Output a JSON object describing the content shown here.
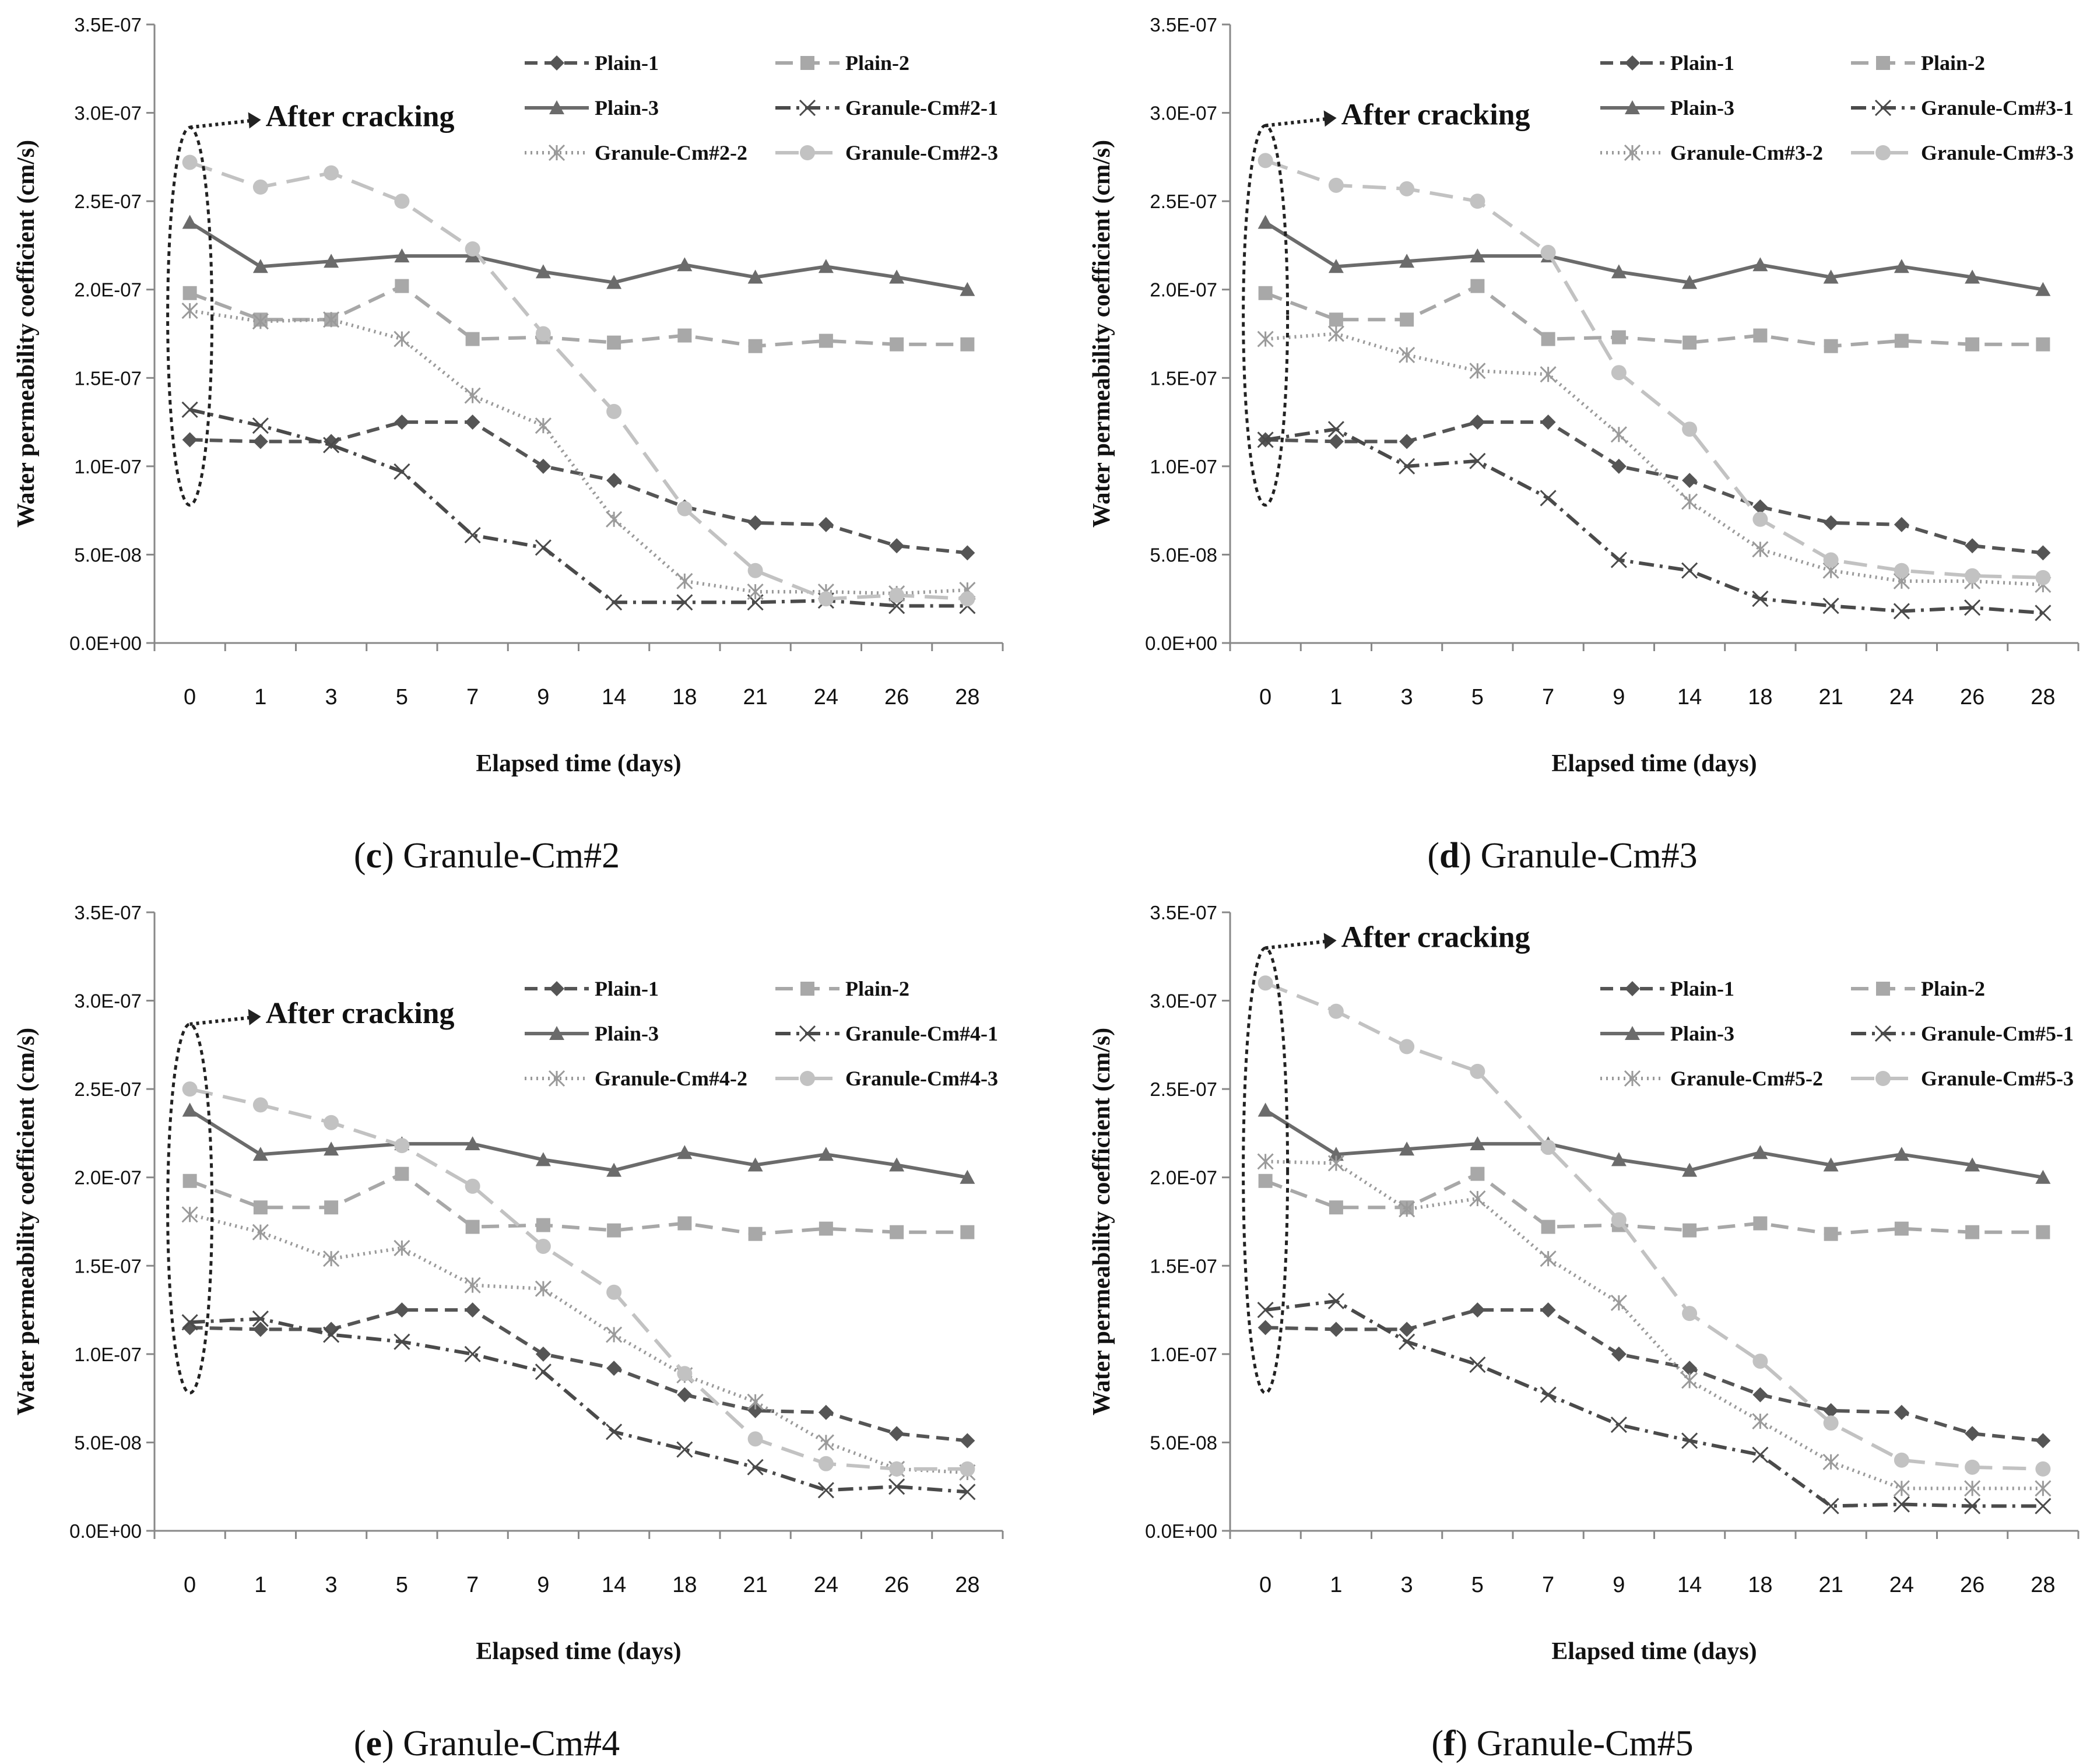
{
  "chart_data": [
    {
      "type": "line",
      "panel_label": "c",
      "caption_text": "Granule-Cm#2",
      "categories": [
        "0",
        "1",
        "3",
        "5",
        "7",
        "9",
        "14",
        "18",
        "21",
        "24",
        "26",
        "28"
      ],
      "xlabel": "Elapsed time (days)",
      "ylabel": "Water permeability coefficient (cm/s)",
      "ylim": [
        0,
        3.5e-07
      ],
      "yticks": [
        "0.0E+00",
        "5.0E-08",
        "1.0E-07",
        "1.5E-07",
        "2.0E-07",
        "2.5E-07",
        "3.0E-07",
        "3.5E-07"
      ],
      "annotation": "After cracking",
      "series": [
        {
          "name": "Plain-1",
          "style": "plain1",
          "values": [
            1.15e-07,
            1.14e-07,
            1.14e-07,
            1.25e-07,
            1.25e-07,
            1e-07,
            9.2e-08,
            7.7e-08,
            6.8e-08,
            6.7e-08,
            5.5e-08,
            5.1e-08
          ]
        },
        {
          "name": "Plain-2",
          "style": "plain2",
          "values": [
            1.98e-07,
            1.83e-07,
            1.83e-07,
            2.02e-07,
            1.72e-07,
            1.73e-07,
            1.7e-07,
            1.74e-07,
            1.68e-07,
            1.71e-07,
            1.69e-07,
            1.69e-07
          ]
        },
        {
          "name": "Plain-3",
          "style": "plain3",
          "values": [
            2.38e-07,
            2.13e-07,
            2.16e-07,
            2.19e-07,
            2.19e-07,
            2.1e-07,
            2.04e-07,
            2.14e-07,
            2.07e-07,
            2.13e-07,
            2.07e-07,
            2e-07
          ]
        },
        {
          "name": "Granule-Cm#2-1",
          "style": "g1",
          "values": [
            1.32e-07,
            1.23e-07,
            1.12e-07,
            9.7e-08,
            6.1e-08,
            5.4e-08,
            2.3e-08,
            2.3e-08,
            2.3e-08,
            2.4e-08,
            2.1e-08,
            2.1e-08
          ]
        },
        {
          "name": "Granule-Cm#2-2",
          "style": "g2",
          "values": [
            1.88e-07,
            1.82e-07,
            1.83e-07,
            1.72e-07,
            1.4e-07,
            1.23e-07,
            7e-08,
            3.5e-08,
            2.9e-08,
            2.9e-08,
            2.8e-08,
            3e-08
          ]
        },
        {
          "name": "Granule-Cm#2-3",
          "style": "g3",
          "values": [
            2.72e-07,
            2.58e-07,
            2.66e-07,
            2.5e-07,
            2.23e-07,
            1.75e-07,
            1.31e-07,
            7.6e-08,
            4.1e-08,
            2.5e-08,
            2.7e-08,
            2.5e-08
          ]
        }
      ]
    },
    {
      "type": "line",
      "panel_label": "d",
      "caption_text": "Granule-Cm#3",
      "categories": [
        "0",
        "1",
        "3",
        "5",
        "7",
        "9",
        "14",
        "18",
        "21",
        "24",
        "26",
        "28"
      ],
      "xlabel": "Elapsed time (days)",
      "ylabel": "Water permeability coefficient (cm/s)",
      "ylim": [
        0,
        3.5e-07
      ],
      "yticks": [
        "0.0E+00",
        "5.0E-08",
        "1.0E-07",
        "1.5E-07",
        "2.0E-07",
        "2.5E-07",
        "3.0E-07",
        "3.5E-07"
      ],
      "annotation": "After cracking",
      "series": [
        {
          "name": "Plain-1",
          "style": "plain1",
          "values": [
            1.15e-07,
            1.14e-07,
            1.14e-07,
            1.25e-07,
            1.25e-07,
            1e-07,
            9.2e-08,
            7.7e-08,
            6.8e-08,
            6.7e-08,
            5.5e-08,
            5.1e-08
          ]
        },
        {
          "name": "Plain-2",
          "style": "plain2",
          "values": [
            1.98e-07,
            1.83e-07,
            1.83e-07,
            2.02e-07,
            1.72e-07,
            1.73e-07,
            1.7e-07,
            1.74e-07,
            1.68e-07,
            1.71e-07,
            1.69e-07,
            1.69e-07
          ]
        },
        {
          "name": "Plain-3",
          "style": "plain3",
          "values": [
            2.38e-07,
            2.13e-07,
            2.16e-07,
            2.19e-07,
            2.19e-07,
            2.1e-07,
            2.04e-07,
            2.14e-07,
            2.07e-07,
            2.13e-07,
            2.07e-07,
            2e-07
          ]
        },
        {
          "name": "Granule-Cm#3-1",
          "style": "g1",
          "values": [
            1.15e-07,
            1.21e-07,
            1e-07,
            1.03e-07,
            8.2e-08,
            4.7e-08,
            4.1e-08,
            2.5e-08,
            2.1e-08,
            1.8e-08,
            2e-08,
            1.7e-08
          ]
        },
        {
          "name": "Granule-Cm#3-2",
          "style": "g2",
          "values": [
            1.72e-07,
            1.75e-07,
            1.63e-07,
            1.54e-07,
            1.52e-07,
            1.18e-07,
            8e-08,
            5.3e-08,
            4.1e-08,
            3.5e-08,
            3.5e-08,
            3.3e-08
          ]
        },
        {
          "name": "Granule-Cm#3-3",
          "style": "g3",
          "values": [
            2.73e-07,
            2.59e-07,
            2.57e-07,
            2.5e-07,
            2.21e-07,
            1.53e-07,
            1.21e-07,
            7e-08,
            4.7e-08,
            4.1e-08,
            3.8e-08,
            3.7e-08
          ]
        }
      ]
    },
    {
      "type": "line",
      "panel_label": "e",
      "caption_text": "Granule-Cm#4",
      "categories": [
        "0",
        "1",
        "3",
        "5",
        "7",
        "9",
        "14",
        "18",
        "21",
        "24",
        "26",
        "28"
      ],
      "xlabel": "Elapsed time (days)",
      "ylabel": "Water permeability coefficient (cm/s)",
      "ylim": [
        0,
        3.5e-07
      ],
      "yticks": [
        "0.0E+00",
        "5.0E-08",
        "1.0E-07",
        "1.5E-07",
        "2.0E-07",
        "2.5E-07",
        "3.0E-07",
        "3.5E-07"
      ],
      "annotation": "After cracking",
      "series": [
        {
          "name": "Plain-1",
          "style": "plain1",
          "values": [
            1.15e-07,
            1.14e-07,
            1.14e-07,
            1.25e-07,
            1.25e-07,
            1e-07,
            9.2e-08,
            7.7e-08,
            6.8e-08,
            6.7e-08,
            5.5e-08,
            5.1e-08
          ]
        },
        {
          "name": "Plain-2",
          "style": "plain2",
          "values": [
            1.98e-07,
            1.83e-07,
            1.83e-07,
            2.02e-07,
            1.72e-07,
            1.73e-07,
            1.7e-07,
            1.74e-07,
            1.68e-07,
            1.71e-07,
            1.69e-07,
            1.69e-07
          ]
        },
        {
          "name": "Plain-3",
          "style": "plain3",
          "values": [
            2.38e-07,
            2.13e-07,
            2.16e-07,
            2.19e-07,
            2.19e-07,
            2.1e-07,
            2.04e-07,
            2.14e-07,
            2.07e-07,
            2.13e-07,
            2.07e-07,
            2e-07
          ]
        },
        {
          "name": "Granule-Cm#4-1",
          "style": "g1",
          "values": [
            1.18e-07,
            1.2e-07,
            1.11e-07,
            1.07e-07,
            1e-07,
            9e-08,
            5.6e-08,
            4.6e-08,
            3.6e-08,
            2.3e-08,
            2.5e-08,
            2.2e-08
          ]
        },
        {
          "name": "Granule-Cm#4-2",
          "style": "g2",
          "values": [
            1.79e-07,
            1.69e-07,
            1.54e-07,
            1.6e-07,
            1.39e-07,
            1.37e-07,
            1.11e-07,
            8.8e-08,
            7.3e-08,
            5e-08,
            3.5e-08,
            3.3e-08
          ]
        },
        {
          "name": "Granule-Cm#4-3",
          "style": "g3",
          "values": [
            2.5e-07,
            2.41e-07,
            2.31e-07,
            2.18e-07,
            1.95e-07,
            1.61e-07,
            1.35e-07,
            8.9e-08,
            5.2e-08,
            3.8e-08,
            3.5e-08,
            3.5e-08
          ]
        }
      ]
    },
    {
      "type": "line",
      "panel_label": "f",
      "caption_text": "Granule-Cm#5",
      "categories": [
        "0",
        "1",
        "3",
        "5",
        "7",
        "9",
        "14",
        "18",
        "21",
        "24",
        "26",
        "28"
      ],
      "xlabel": "Elapsed time (days)",
      "ylabel": "Water permeability coefficient (cm/s)",
      "ylim": [
        0,
        3.5e-07
      ],
      "yticks": [
        "0.0E+00",
        "5.0E-08",
        "1.0E-07",
        "1.5E-07",
        "2.0E-07",
        "2.5E-07",
        "3.0E-07",
        "3.5E-07"
      ],
      "annotation": "After cracking",
      "series": [
        {
          "name": "Plain-1",
          "style": "plain1",
          "values": [
            1.15e-07,
            1.14e-07,
            1.14e-07,
            1.25e-07,
            1.25e-07,
            1e-07,
            9.2e-08,
            7.7e-08,
            6.8e-08,
            6.7e-08,
            5.5e-08,
            5.1e-08
          ]
        },
        {
          "name": "Plain-2",
          "style": "plain2",
          "values": [
            1.98e-07,
            1.83e-07,
            1.83e-07,
            2.02e-07,
            1.72e-07,
            1.73e-07,
            1.7e-07,
            1.74e-07,
            1.68e-07,
            1.71e-07,
            1.69e-07,
            1.69e-07
          ]
        },
        {
          "name": "Plain-3",
          "style": "plain3",
          "values": [
            2.38e-07,
            2.13e-07,
            2.16e-07,
            2.19e-07,
            2.19e-07,
            2.1e-07,
            2.04e-07,
            2.14e-07,
            2.07e-07,
            2.13e-07,
            2.07e-07,
            2e-07
          ]
        },
        {
          "name": "Granule-Cm#5-1",
          "style": "g1",
          "values": [
            1.25e-07,
            1.3e-07,
            1.07e-07,
            9.4e-08,
            7.7e-08,
            6e-08,
            5.1e-08,
            4.3e-08,
            1.4e-08,
            1.5e-08,
            1.4e-08,
            1.4e-08
          ]
        },
        {
          "name": "Granule-Cm#5-2",
          "style": "g2",
          "values": [
            2.09e-07,
            2.08e-07,
            1.82e-07,
            1.88e-07,
            1.54e-07,
            1.29e-07,
            8.5e-08,
            6.2e-08,
            3.9e-08,
            2.4e-08,
            2.4e-08,
            2.4e-08
          ]
        },
        {
          "name": "Granule-Cm#5-3",
          "style": "g3",
          "values": [
            3.1e-07,
            2.94e-07,
            2.74e-07,
            2.6e-07,
            2.17e-07,
            1.76e-07,
            1.23e-07,
            9.6e-08,
            6.1e-08,
            4e-08,
            3.6e-08,
            3.5e-08
          ]
        }
      ]
    }
  ],
  "styles": {
    "plain1": {
      "color": "#555555",
      "dash": "22,12",
      "marker": "diamond"
    },
    "plain2": {
      "color": "#a8a8a8",
      "dash": "30,16",
      "marker": "square"
    },
    "plain3": {
      "color": "#6b6b6b",
      "dash": "",
      "marker": "triangle"
    },
    "g1": {
      "color": "#4a4a4a",
      "dash": "26,10,5,10",
      "marker": "x"
    },
    "g2": {
      "color": "#9a9a9a",
      "dash": "3,7",
      "marker": "asterisk"
    },
    "g3": {
      "color": "#c2c2c2",
      "dash": "40,18",
      "marker": "circle"
    }
  }
}
